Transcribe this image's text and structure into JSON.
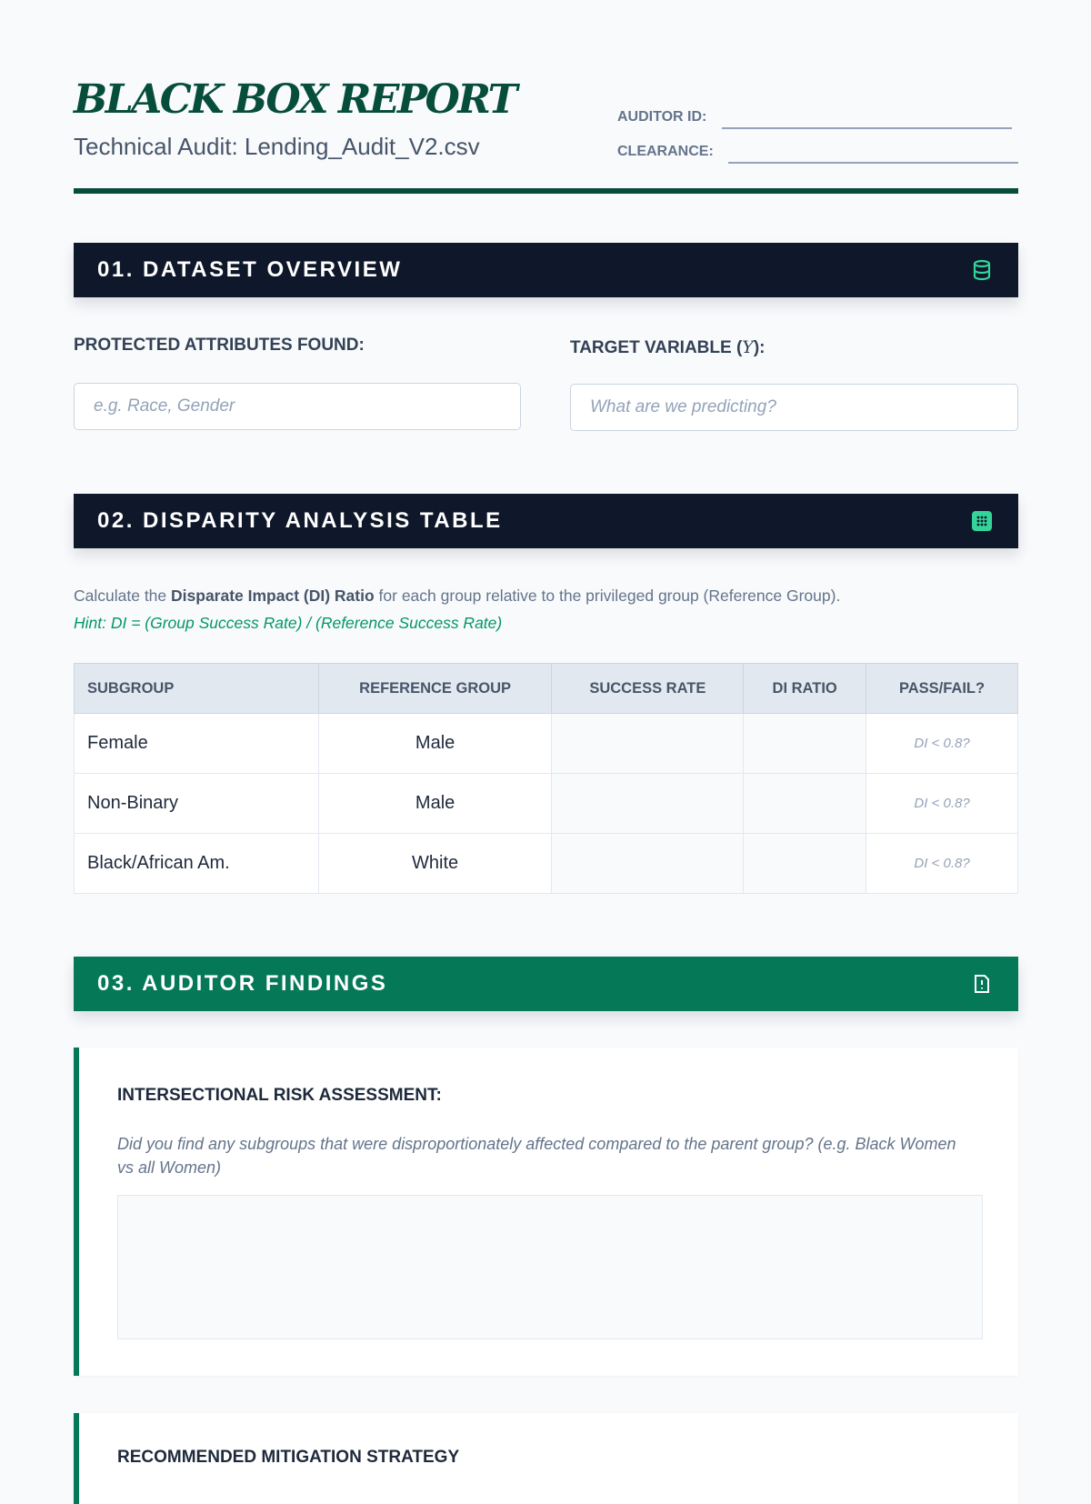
{
  "header": {
    "title": "BLACK BOX REPORT",
    "subtitle": "Technical Audit: Lending_Audit_V2.csv",
    "auditor_id_label": "AUDITOR ID:",
    "clearance_label": "CLEARANCE:",
    "auditor_id_value": "",
    "clearance_value": ""
  },
  "colors": {
    "brand_green": "#064e3b",
    "accent_green": "#047857",
    "dark_bar": "#0f172a",
    "icon_green": "#34d399"
  },
  "sections": [
    {
      "title": "01. DATASET OVERVIEW",
      "icon": "database-icon"
    },
    {
      "title": "02. DISPARITY ANALYSIS TABLE",
      "icon": "table-grid-icon"
    },
    {
      "title": "03. AUDITOR FINDINGS",
      "icon": "file-alert-icon"
    }
  ],
  "overview": {
    "protected_label": "PROTECTED ATTRIBUTES FOUND:",
    "protected_placeholder": "e.g. Race, Gender",
    "target_label": "TARGET VARIABLE (",
    "target_symbol": "Y",
    "target_label_end": "):",
    "target_placeholder": "What are we predicting?"
  },
  "disparity": {
    "desc_pre": "Calculate the ",
    "desc_bold": "Disparate Impact (DI) Ratio",
    "desc_post": " for each group relative to the privileged group (Reference Group).",
    "hint": "Hint: DI = (Group Success Rate) / (Reference Success Rate)",
    "columns": [
      "SUBGROUP",
      "REFERENCE GROUP",
      "SUCCESS RATE",
      "DI RATIO",
      "PASS/FAIL?"
    ],
    "rows": [
      {
        "subgroup": "Female",
        "reference": "Male",
        "success_rate": "",
        "di_ratio": "",
        "pass_fail_placeholder": "DI < 0.8?"
      },
      {
        "subgroup": "Non-Binary",
        "reference": "Male",
        "success_rate": "",
        "di_ratio": "",
        "pass_fail_placeholder": "DI < 0.8?"
      },
      {
        "subgroup": "Black/African Am.",
        "reference": "White",
        "success_rate": "",
        "di_ratio": "",
        "pass_fail_placeholder": "DI < 0.8?"
      }
    ]
  },
  "findings": {
    "intersectional_title": "INTERSECTIONAL RISK ASSESSMENT:",
    "intersectional_prompt": "Did you find any subgroups that were disproportionately affected compared to the parent group? (e.g. Black Women vs all Women)",
    "intersectional_value": "",
    "mitigation_title": "RECOMMENDED MITIGATION STRATEGY"
  }
}
